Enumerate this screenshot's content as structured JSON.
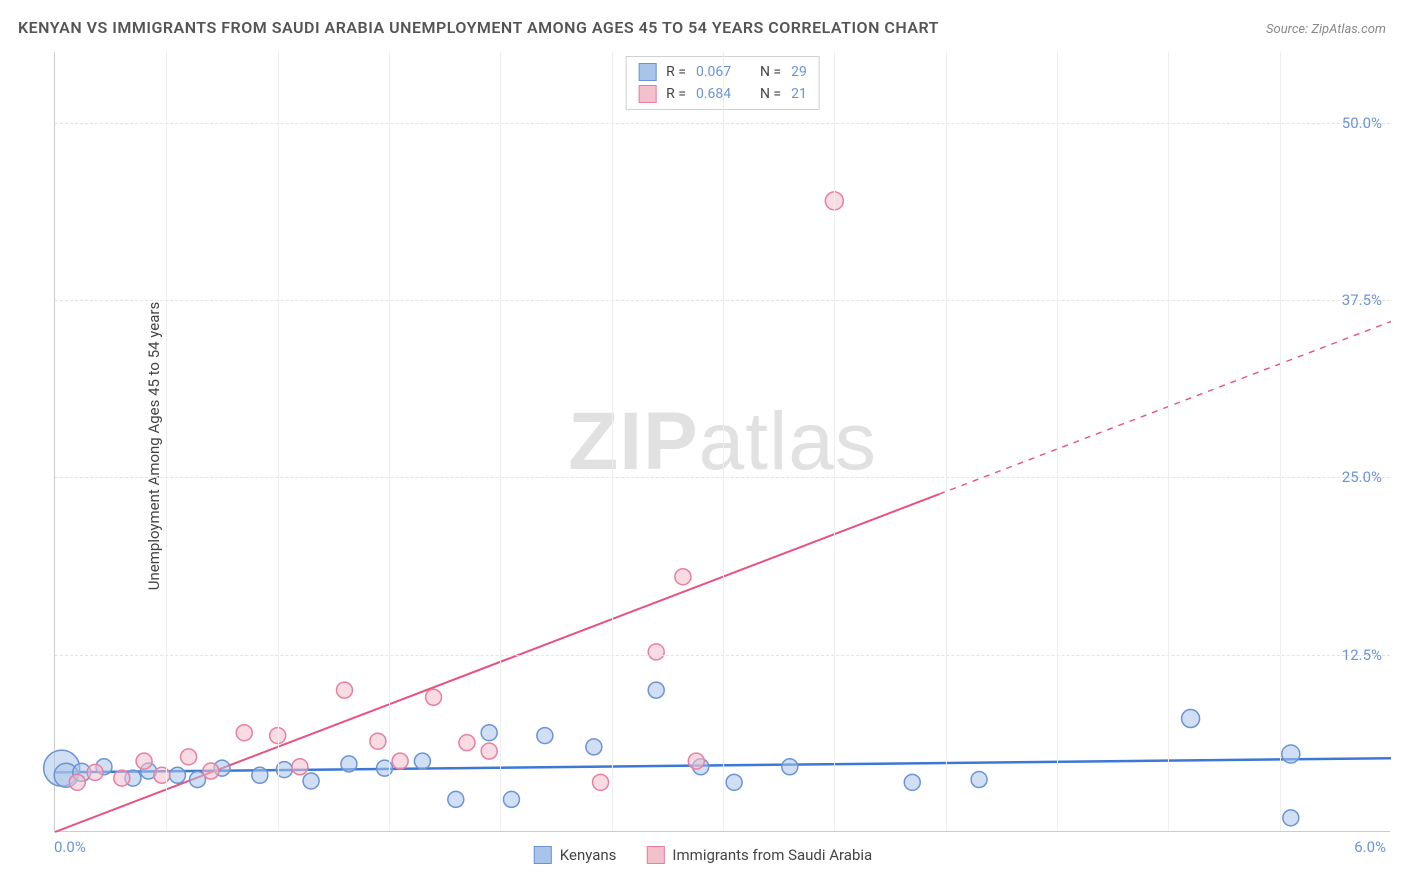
{
  "title": "KENYAN VS IMMIGRANTS FROM SAUDI ARABIA UNEMPLOYMENT AMONG AGES 45 TO 54 YEARS CORRELATION CHART",
  "source": "Source: ZipAtlas.com",
  "ylabel": "Unemployment Among Ages 45 to 54 years",
  "watermark_bold": "ZIP",
  "watermark_light": "atlas",
  "x_axis": {
    "min": 0.0,
    "max": 6.0,
    "origin_label": "0.0%",
    "max_label": "6.0%"
  },
  "y_axis": {
    "min": 0.0,
    "max": 55.0,
    "ticks": [
      12.5,
      25.0,
      37.5,
      50.0
    ],
    "tick_labels": [
      "12.5%",
      "25.0%",
      "37.5%",
      "50.0%"
    ]
  },
  "grid_vertical_x": [
    0.5,
    1.0,
    1.5,
    2.0,
    2.5,
    3.0,
    3.5,
    4.0,
    4.5,
    5.0,
    5.5
  ],
  "series": [
    {
      "name": "Kenyans",
      "fill": "#a9c4ea",
      "stroke": "#6b94d6",
      "line_color": "#3d78d6",
      "line_width": 2.5,
      "r_label": "R =",
      "r_value": "0.067",
      "n_label": "N =",
      "n_value": "29",
      "trend": {
        "x1": 0.0,
        "y1": 4.2,
        "x2": 6.0,
        "y2": 5.2,
        "dashed_from_x": 6.0
      },
      "points": [
        {
          "x": 0.03,
          "y": 4.5,
          "r": 18
        },
        {
          "x": 0.05,
          "y": 4.0,
          "r": 12
        },
        {
          "x": 0.12,
          "y": 4.2,
          "r": 9
        },
        {
          "x": 0.22,
          "y": 4.6,
          "r": 8
        },
        {
          "x": 0.35,
          "y": 3.8,
          "r": 8
        },
        {
          "x": 0.42,
          "y": 4.3,
          "r": 8
        },
        {
          "x": 0.55,
          "y": 4.0,
          "r": 8
        },
        {
          "x": 0.64,
          "y": 3.7,
          "r": 8
        },
        {
          "x": 0.75,
          "y": 4.5,
          "r": 8
        },
        {
          "x": 0.92,
          "y": 4.0,
          "r": 8
        },
        {
          "x": 1.03,
          "y": 4.4,
          "r": 8
        },
        {
          "x": 1.15,
          "y": 3.6,
          "r": 8
        },
        {
          "x": 1.32,
          "y": 4.8,
          "r": 8
        },
        {
          "x": 1.48,
          "y": 4.5,
          "r": 8
        },
        {
          "x": 1.65,
          "y": 5.0,
          "r": 8
        },
        {
          "x": 1.8,
          "y": 2.3,
          "r": 8
        },
        {
          "x": 1.95,
          "y": 7.0,
          "r": 8
        },
        {
          "x": 2.05,
          "y": 2.3,
          "r": 8
        },
        {
          "x": 2.2,
          "y": 6.8,
          "r": 8
        },
        {
          "x": 2.42,
          "y": 6.0,
          "r": 8
        },
        {
          "x": 2.7,
          "y": 10.0,
          "r": 8
        },
        {
          "x": 2.9,
          "y": 4.6,
          "r": 8
        },
        {
          "x": 3.05,
          "y": 3.5,
          "r": 8
        },
        {
          "x": 3.3,
          "y": 4.6,
          "r": 8
        },
        {
          "x": 3.85,
          "y": 3.5,
          "r": 8
        },
        {
          "x": 4.15,
          "y": 3.7,
          "r": 8
        },
        {
          "x": 5.1,
          "y": 8.0,
          "r": 9
        },
        {
          "x": 5.55,
          "y": 5.5,
          "r": 9
        },
        {
          "x": 5.55,
          "y": 1.0,
          "r": 8
        }
      ]
    },
    {
      "name": "Immigrants from Saudi Arabia",
      "fill": "#f4c0cc",
      "stroke": "#e97fa0",
      "line_color": "#e5537e",
      "line_width": 2,
      "r_label": "R =",
      "r_value": "0.684",
      "n_label": "N =",
      "n_value": "21",
      "trend": {
        "x1": 0.0,
        "y1": 0.0,
        "x2": 6.0,
        "y2": 36.0,
        "dashed_from_x": 3.97
      },
      "points": [
        {
          "x": 0.1,
          "y": 3.5,
          "r": 8
        },
        {
          "x": 0.18,
          "y": 4.2,
          "r": 8
        },
        {
          "x": 0.3,
          "y": 3.8,
          "r": 8
        },
        {
          "x": 0.4,
          "y": 5.0,
          "r": 8
        },
        {
          "x": 0.48,
          "y": 4.0,
          "r": 8
        },
        {
          "x": 0.6,
          "y": 5.3,
          "r": 8
        },
        {
          "x": 0.7,
          "y": 4.3,
          "r": 8
        },
        {
          "x": 0.85,
          "y": 7.0,
          "r": 8
        },
        {
          "x": 1.0,
          "y": 6.8,
          "r": 8
        },
        {
          "x": 1.1,
          "y": 4.6,
          "r": 8
        },
        {
          "x": 1.3,
          "y": 10.0,
          "r": 8
        },
        {
          "x": 1.45,
          "y": 6.4,
          "r": 8
        },
        {
          "x": 1.55,
          "y": 5.0,
          "r": 8
        },
        {
          "x": 1.7,
          "y": 9.5,
          "r": 8
        },
        {
          "x": 1.85,
          "y": 6.3,
          "r": 8
        },
        {
          "x": 1.95,
          "y": 5.7,
          "r": 8
        },
        {
          "x": 2.45,
          "y": 3.5,
          "r": 8
        },
        {
          "x": 2.7,
          "y": 12.7,
          "r": 8
        },
        {
          "x": 2.88,
          "y": 5.0,
          "r": 8
        },
        {
          "x": 2.82,
          "y": 18.0,
          "r": 8
        },
        {
          "x": 3.5,
          "y": 44.5,
          "r": 9
        }
      ]
    }
  ],
  "colors": {
    "title": "#555555",
    "source": "#888888",
    "axis_label": "#444444",
    "tick_label": "#6b94d6",
    "grid": "#e3e3e3",
    "watermark": "#c9c9c9"
  }
}
